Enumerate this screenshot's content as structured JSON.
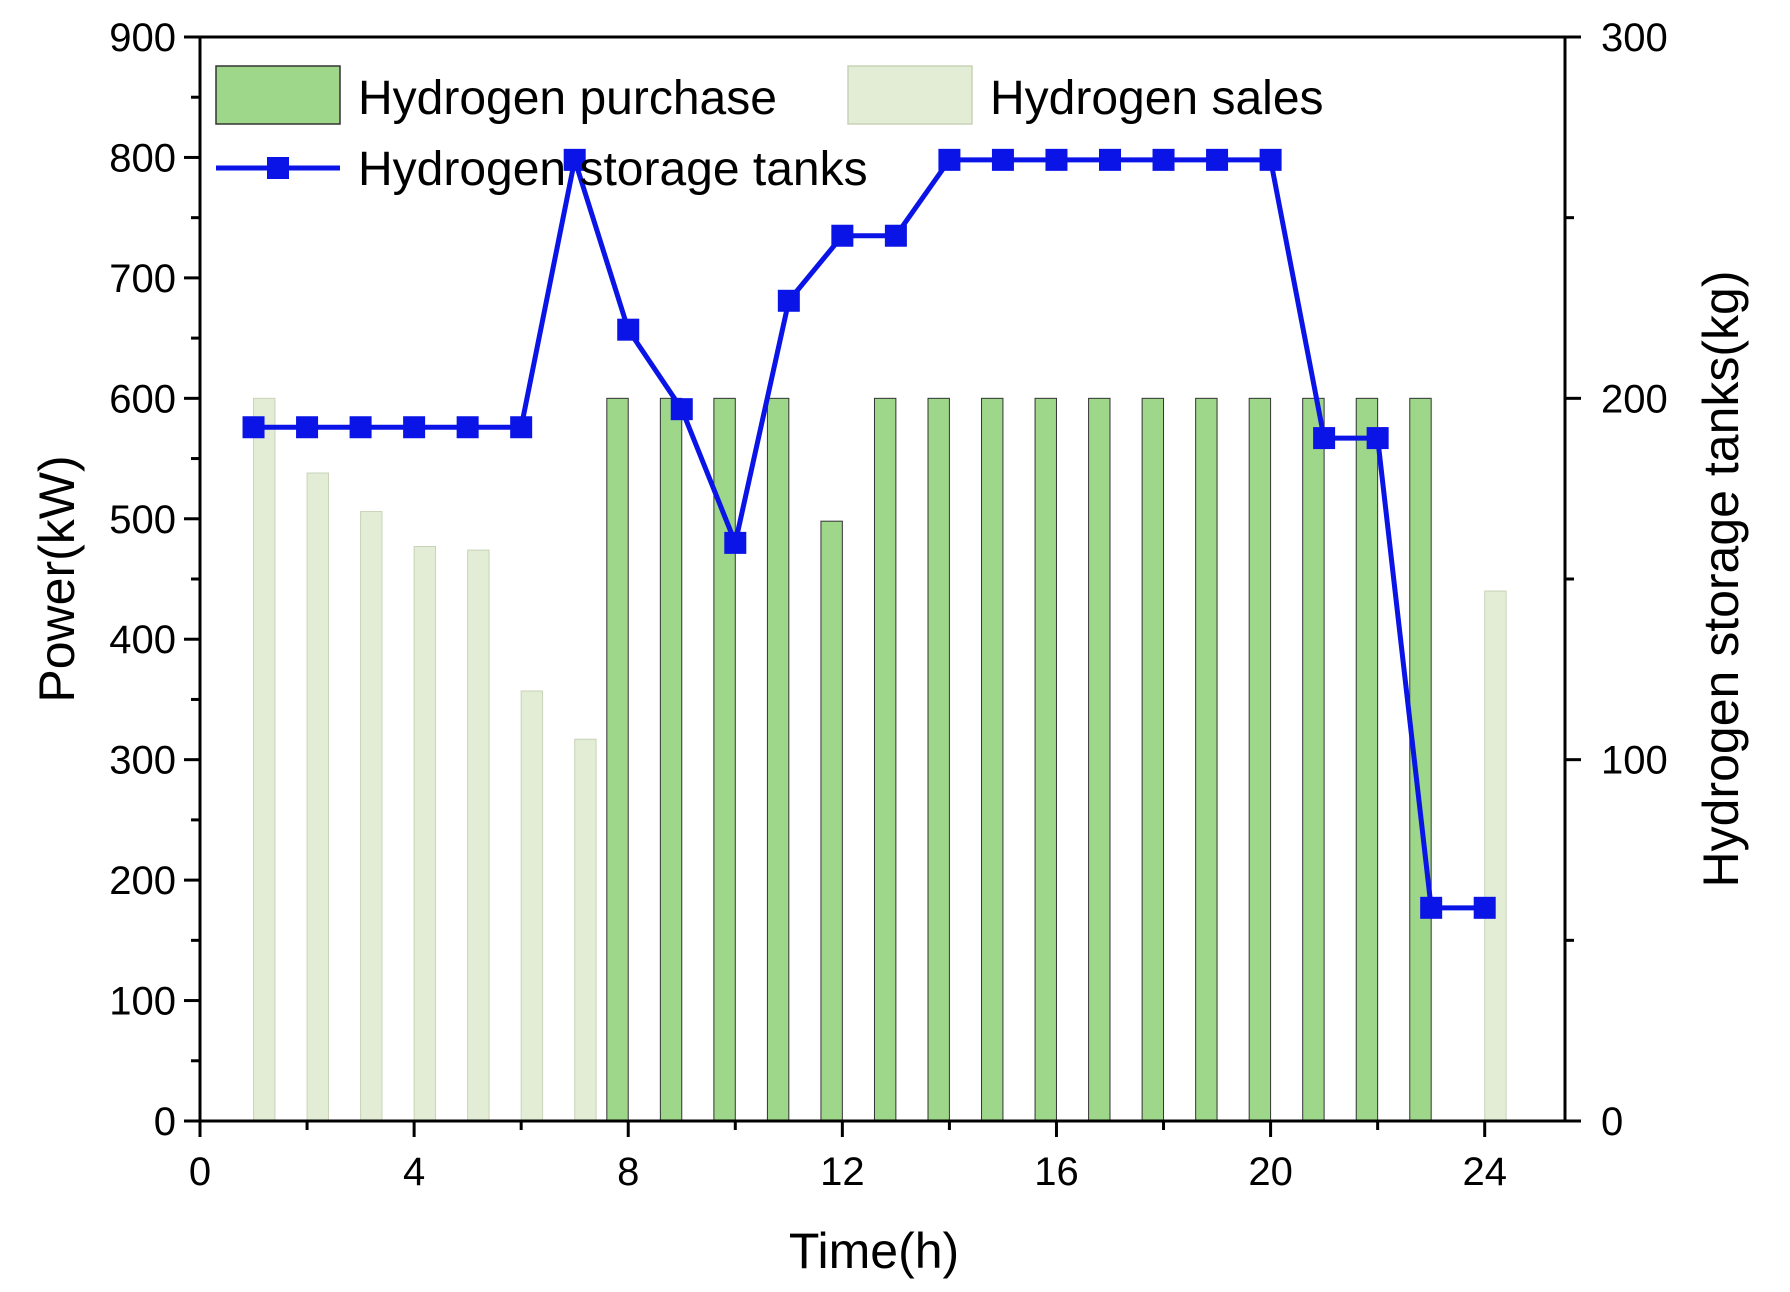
{
  "chart_data": {
    "type": "bar",
    "title": "",
    "xlabel": "Time(h)",
    "ylabel": "Power(kW)",
    "y2label": "Hydrogen storage tanks(kg)",
    "xlim": [
      0,
      25.5
    ],
    "ylim": [
      0,
      900
    ],
    "y2lim": [
      0,
      300
    ],
    "x_ticks": [
      0,
      4,
      8,
      12,
      16,
      20,
      24
    ],
    "y_ticks": [
      0,
      100,
      200,
      300,
      400,
      500,
      600,
      700,
      800,
      900
    ],
    "y2_ticks": [
      0,
      100,
      200,
      300
    ],
    "grid": false,
    "legend_position": "top-left",
    "x": [
      1,
      2,
      3,
      4,
      5,
      6,
      7,
      8,
      9,
      10,
      11,
      12,
      13,
      14,
      15,
      16,
      17,
      18,
      19,
      20,
      21,
      22,
      23,
      24
    ],
    "series": [
      {
        "name": "Hydrogen purchase",
        "type": "bar",
        "axis": "left",
        "color": "#9ed68a",
        "values": [
          0,
          0,
          0,
          0,
          0,
          0,
          0,
          600,
          600,
          600,
          600,
          498,
          600,
          600,
          600,
          600,
          600,
          600,
          600,
          600,
          600,
          600,
          600,
          0
        ]
      },
      {
        "name": "Hydrogen sales",
        "type": "bar",
        "axis": "left",
        "color": "#e3ecd5",
        "values": [
          600,
          538,
          506,
          477,
          474,
          357,
          317,
          0,
          0,
          0,
          0,
          0,
          0,
          0,
          0,
          0,
          0,
          0,
          0,
          0,
          0,
          0,
          0,
          440
        ]
      },
      {
        "name": "Hydrogen storage tanks",
        "type": "line",
        "axis": "right",
        "color": "#0a14e6",
        "values": [
          192,
          192,
          192,
          192,
          192,
          192,
          266,
          219,
          197,
          160,
          227,
          245,
          245,
          266,
          266,
          266,
          266,
          266,
          266,
          266,
          189,
          189,
          59,
          59
        ]
      }
    ]
  }
}
